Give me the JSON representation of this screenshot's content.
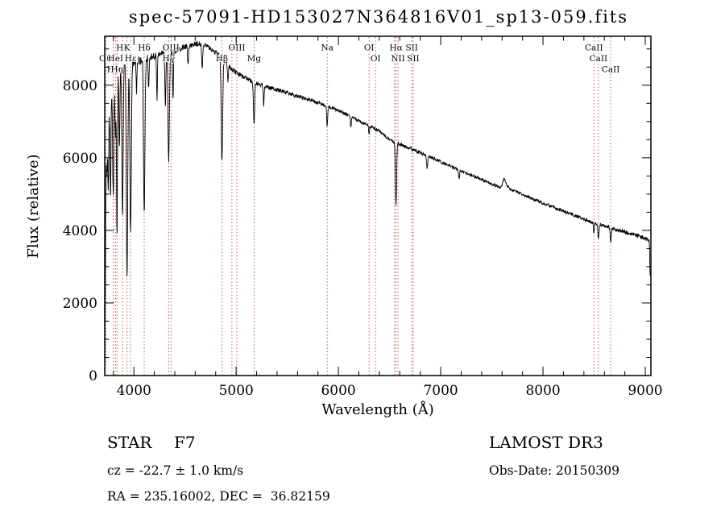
{
  "title": "spec-57091-HD153027N364816V01_sp13-059.fits",
  "colors": {
    "background": "#ffffff",
    "axis": "#000000",
    "spectrum": "#000000",
    "marker_line": "#bb4444",
    "marker_label": "#8b1a1a"
  },
  "footer": {
    "class_label": "STAR",
    "subclass": "F7",
    "cz": "cz = -22.7 ± 1.0 km/s",
    "ra_dec": "RA = 235.16002, DEC =  36.82159",
    "survey": "LAMOST DR3",
    "obs_date": "Obs-Date: 20150309"
  },
  "chart_data": {
    "type": "line",
    "title": "spec-57091-HD153027N364816V01_sp13-059.fits",
    "xlabel": "Wavelength (Å)",
    "ylabel": "Flux (relative)",
    "xlim": [
      3715,
      9055
    ],
    "ylim": [
      0,
      9350
    ],
    "xticks": [
      4000,
      5000,
      6000,
      7000,
      8000,
      9000
    ],
    "yticks": [
      0,
      2000,
      4000,
      6000,
      8000
    ],
    "x_minor_step": 200,
    "y_minor_step": 500,
    "sample_step": 3,
    "grid": false,
    "legend": "none",
    "spectral_markers": [
      {
        "wavelength": 3727,
        "label": "OII",
        "row": 2
      },
      {
        "wavelength": 3798,
        "label": "Hθ",
        "row": 3
      },
      {
        "wavelength": 3820,
        "label": "HeI",
        "row": 2
      },
      {
        "wavelength": 3835,
        "label": "Hη",
        "row": 3
      },
      {
        "wavelength": 3889,
        "label": "H8",
        "row": 1
      },
      {
        "wavelength": 3933,
        "label": "K",
        "row": 1
      },
      {
        "wavelength": 3968,
        "label": "Hε",
        "row": 2
      },
      {
        "wavelength": 4101,
        "label": "Hδ",
        "row": 1
      },
      {
        "wavelength": 4340,
        "label": "Hγ",
        "row": 2
      },
      {
        "wavelength": 4363,
        "label": "OIII",
        "row": 1
      },
      {
        "wavelength": 4861,
        "label": "Hβ",
        "row": 2
      },
      {
        "wavelength": 5007,
        "label": "OIII",
        "row": 1
      },
      {
        "wavelength": 5175,
        "label": "Mg",
        "row": 2
      },
      {
        "wavelength": 5890,
        "label": "Na",
        "row": 1
      },
      {
        "wavelength": 6300,
        "label": "OI",
        "row": 1
      },
      {
        "wavelength": 6363,
        "label": "OI",
        "row": 2
      },
      {
        "wavelength": 6563,
        "label": "Hα",
        "row": 1
      },
      {
        "wavelength": 6583,
        "label": "NII",
        "row": 2
      },
      {
        "wavelength": 6717,
        "label": "SII",
        "row": 1
      },
      {
        "wavelength": 6731,
        "label": "SII",
        "row": 2
      },
      {
        "wavelength": 8498,
        "label": "CaII",
        "row": 1
      },
      {
        "wavelength": 8542,
        "label": "CaII",
        "row": 2
      },
      {
        "wavelength": 8662,
        "label": "CaII",
        "row": 3
      }
    ],
    "extra_marker_lines": [
      4959,
      6548
    ],
    "continuum_points": [
      [
        3715,
        120
      ],
      [
        3722,
        3200
      ],
      [
        3728,
        6000
      ],
      [
        3737,
        7200
      ],
      [
        3750,
        7600
      ],
      [
        3775,
        7850
      ],
      [
        3800,
        8050
      ],
      [
        3830,
        8250
      ],
      [
        3860,
        8400
      ],
      [
        3900,
        8550
      ],
      [
        3950,
        8600
      ],
      [
        4000,
        8650
      ],
      [
        4060,
        8700
      ],
      [
        4120,
        8760
      ],
      [
        4200,
        8820
      ],
      [
        4300,
        8880
      ],
      [
        4400,
        8960
      ],
      [
        4500,
        9060
      ],
      [
        4580,
        9130
      ],
      [
        4650,
        9150
      ],
      [
        4720,
        9080
      ],
      [
        4780,
        8950
      ],
      [
        4840,
        8800
      ],
      [
        4900,
        8620
      ],
      [
        4960,
        8440
      ],
      [
        5020,
        8310
      ],
      [
        5100,
        8180
      ],
      [
        5200,
        8060
      ],
      [
        5300,
        7950
      ],
      [
        5400,
        7870
      ],
      [
        5500,
        7790
      ],
      [
        5600,
        7700
      ],
      [
        5700,
        7610
      ],
      [
        5800,
        7520
      ],
      [
        5900,
        7420
      ],
      [
        6000,
        7300
      ],
      [
        6100,
        7160
      ],
      [
        6200,
        7020
      ],
      [
        6300,
        6880
      ],
      [
        6400,
        6740
      ],
      [
        6500,
        6500
      ],
      [
        6600,
        6380
      ],
      [
        6700,
        6260
      ],
      [
        6800,
        6140
      ],
      [
        6900,
        6020
      ],
      [
        7000,
        5890
      ],
      [
        7100,
        5760
      ],
      [
        7200,
        5640
      ],
      [
        7300,
        5520
      ],
      [
        7400,
        5400
      ],
      [
        7500,
        5280
      ],
      [
        7590,
        5180
      ],
      [
        7620,
        5430
      ],
      [
        7650,
        5210
      ],
      [
        7700,
        5110
      ],
      [
        7800,
        4990
      ],
      [
        7900,
        4870
      ],
      [
        8000,
        4750
      ],
      [
        8100,
        4640
      ],
      [
        8200,
        4530
      ],
      [
        8300,
        4420
      ],
      [
        8400,
        4310
      ],
      [
        8500,
        4210
      ],
      [
        8600,
        4120
      ],
      [
        8700,
        4040
      ],
      [
        8800,
        3960
      ],
      [
        8900,
        3870
      ],
      [
        9000,
        3780
      ],
      [
        9025,
        3740
      ],
      [
        9040,
        3700
      ],
      [
        9048,
        2620
      ]
    ],
    "absorption_lines": [
      [
        3737,
        1500,
        5
      ],
      [
        3750,
        2400,
        5
      ],
      [
        3771,
        2900,
        5
      ],
      [
        3798,
        3100,
        6
      ],
      [
        3820,
        1600,
        4
      ],
      [
        3835,
        4300,
        5
      ],
      [
        3859,
        2200,
        4
      ],
      [
        3889,
        4200,
        6
      ],
      [
        3933,
        5900,
        7
      ],
      [
        3968,
        4700,
        7
      ],
      [
        4026,
        900,
        4
      ],
      [
        4101,
        4300,
        7
      ],
      [
        4144,
        900,
        4
      ],
      [
        4226,
        1200,
        4
      ],
      [
        4308,
        1400,
        5
      ],
      [
        4340,
        3000,
        7
      ],
      [
        4383,
        1400,
        4
      ],
      [
        4530,
        500,
        5
      ],
      [
        4668,
        700,
        5
      ],
      [
        4861,
        2850,
        7
      ],
      [
        4920,
        500,
        4
      ],
      [
        5175,
        1150,
        6
      ],
      [
        5269,
        550,
        4
      ],
      [
        5890,
        560,
        5
      ],
      [
        6122,
        260,
        4
      ],
      [
        6300,
        220,
        4
      ],
      [
        6563,
        1700,
        6
      ],
      [
        6867,
        360,
        5
      ],
      [
        7180,
        220,
        5
      ],
      [
        8498,
        320,
        4
      ],
      [
        8542,
        430,
        5
      ],
      [
        8662,
        380,
        5
      ]
    ],
    "noise_amplitude": [
      [
        3715,
        320
      ],
      [
        3760,
        240
      ],
      [
        3850,
        170
      ],
      [
        3950,
        130
      ],
      [
        4100,
        110
      ],
      [
        4300,
        95
      ],
      [
        4500,
        80
      ],
      [
        4800,
        70
      ],
      [
        5200,
        60
      ],
      [
        5600,
        52
      ],
      [
        6000,
        48
      ],
      [
        6500,
        44
      ],
      [
        7000,
        42
      ],
      [
        7600,
        42
      ],
      [
        8200,
        45
      ],
      [
        8700,
        50
      ],
      [
        9048,
        60
      ]
    ]
  }
}
